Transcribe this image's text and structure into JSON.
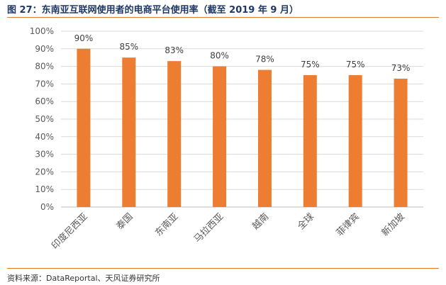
{
  "header": {
    "title": "图 27：东南亚互联网使用者的电商平台使用率（截至 2019 年 9 月）"
  },
  "footer": {
    "source": "资料来源：DataReportal、天风证券研究所"
  },
  "colors": {
    "bar": "#ED7D31",
    "accent_rule": "#E07B2A",
    "title": "#1F3864",
    "grid": "#D9D9D9"
  },
  "chart_data": {
    "type": "bar",
    "title": "",
    "xlabel": "",
    "ylabel": "",
    "categories": [
      "印度尼西亚",
      "泰国",
      "东南亚",
      "马拉西亚",
      "越南",
      "全球",
      "菲律宾",
      "新加坡"
    ],
    "values": [
      90,
      85,
      83,
      80,
      78,
      75,
      75,
      73
    ],
    "data_labels": [
      "90%",
      "85%",
      "83%",
      "80%",
      "78%",
      "75%",
      "75%",
      "73%"
    ],
    "ylim": [
      0,
      100
    ],
    "yticks": [
      0,
      10,
      20,
      30,
      40,
      50,
      60,
      70,
      80,
      90,
      100
    ],
    "ytick_labels": [
      "0%",
      "10%",
      "20%",
      "30%",
      "40%",
      "50%",
      "60%",
      "70%",
      "80%",
      "90%",
      "100%"
    ],
    "grid": true,
    "legend": "none"
  }
}
